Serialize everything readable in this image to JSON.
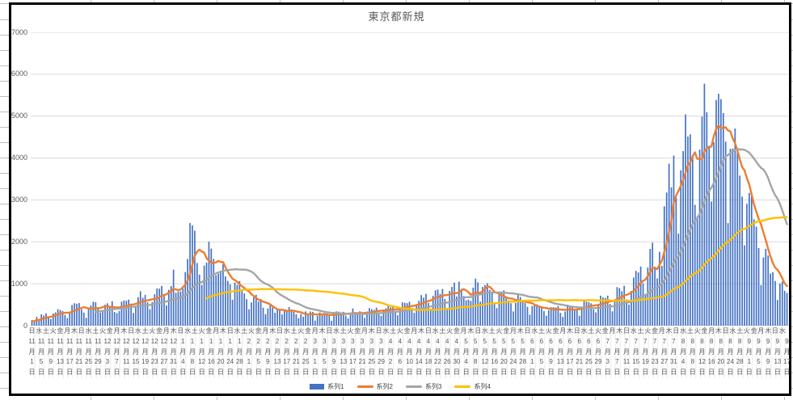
{
  "chart_data": {
    "type": "combo",
    "title": "東京都新規",
    "ylabel": "",
    "xlabel": "",
    "ylim": [
      0,
      7000
    ],
    "yticks": [
      0,
      1000,
      2000,
      3000,
      4000,
      5000,
      6000,
      7000
    ],
    "grid": "horizontal",
    "legend_position": "bottom",
    "x_start_label": "11月1日",
    "x_end_label": "9月17日",
    "x_tick_interval_days": 4,
    "weekday_row_interval_days": 3,
    "weekday_cycle": [
      "日",
      "水",
      "土",
      "火",
      "金",
      "月",
      "木"
    ],
    "x_tick_labels": [
      {
        "m": 11,
        "d": 1
      },
      {
        "m": 11,
        "d": 5
      },
      {
        "m": 11,
        "d": 9
      },
      {
        "m": 11,
        "d": 13
      },
      {
        "m": 11,
        "d": 17
      },
      {
        "m": 11,
        "d": 21
      },
      {
        "m": 11,
        "d": 25
      },
      {
        "m": 11,
        "d": 29
      },
      {
        "m": 12,
        "d": 3
      },
      {
        "m": 12,
        "d": 7
      },
      {
        "m": 12,
        "d": 11
      },
      {
        "m": 12,
        "d": 15
      },
      {
        "m": 12,
        "d": 19
      },
      {
        "m": 12,
        "d": 23
      },
      {
        "m": 12,
        "d": 27
      },
      {
        "m": 12,
        "d": 31
      },
      {
        "m": 1,
        "d": 4
      },
      {
        "m": 1,
        "d": 8
      },
      {
        "m": 1,
        "d": 12
      },
      {
        "m": 1,
        "d": 16
      },
      {
        "m": 1,
        "d": 20
      },
      {
        "m": 1,
        "d": 24
      },
      {
        "m": 1,
        "d": 28
      },
      {
        "m": 2,
        "d": 1
      },
      {
        "m": 2,
        "d": 5
      },
      {
        "m": 2,
        "d": 9
      },
      {
        "m": 2,
        "d": 13
      },
      {
        "m": 2,
        "d": 17
      },
      {
        "m": 2,
        "d": 21
      },
      {
        "m": 2,
        "d": 25
      },
      {
        "m": 3,
        "d": 1
      },
      {
        "m": 3,
        "d": 5
      },
      {
        "m": 3,
        "d": 9
      },
      {
        "m": 3,
        "d": 13
      },
      {
        "m": 3,
        "d": 17
      },
      {
        "m": 3,
        "d": 21
      },
      {
        "m": 3,
        "d": 25
      },
      {
        "m": 3,
        "d": 29
      },
      {
        "m": 4,
        "d": 2
      },
      {
        "m": 4,
        "d": 6
      },
      {
        "m": 4,
        "d": 10
      },
      {
        "m": 4,
        "d": 14
      },
      {
        "m": 4,
        "d": 18
      },
      {
        "m": 4,
        "d": 22
      },
      {
        "m": 4,
        "d": 26
      },
      {
        "m": 4,
        "d": 30
      },
      {
        "m": 5,
        "d": 4
      },
      {
        "m": 5,
        "d": 8
      },
      {
        "m": 5,
        "d": 12
      },
      {
        "m": 5,
        "d": 16
      },
      {
        "m": 5,
        "d": 20
      },
      {
        "m": 5,
        "d": 24
      },
      {
        "m": 5,
        "d": 28
      },
      {
        "m": 6,
        "d": 1
      },
      {
        "m": 6,
        "d": 5
      },
      {
        "m": 6,
        "d": 9
      },
      {
        "m": 6,
        "d": 13
      },
      {
        "m": 6,
        "d": 17
      },
      {
        "m": 6,
        "d": 21
      },
      {
        "m": 6,
        "d": 25
      },
      {
        "m": 6,
        "d": 29
      },
      {
        "m": 7,
        "d": 3
      },
      {
        "m": 7,
        "d": 7
      },
      {
        "m": 7,
        "d": 11
      },
      {
        "m": 7,
        "d": 15
      },
      {
        "m": 7,
        "d": 19
      },
      {
        "m": 7,
        "d": 23
      },
      {
        "m": 7,
        "d": 27
      },
      {
        "m": 7,
        "d": 31
      },
      {
        "m": 8,
        "d": 4
      },
      {
        "m": 8,
        "d": 8
      },
      {
        "m": 8,
        "d": 12
      },
      {
        "m": 8,
        "d": 16
      },
      {
        "m": 8,
        "d": 20
      },
      {
        "m": 8,
        "d": 24
      },
      {
        "m": 8,
        "d": 28
      },
      {
        "m": 9,
        "d": 1
      },
      {
        "m": 9,
        "d": 5
      },
      {
        "m": 9,
        "d": 9
      },
      {
        "m": 9,
        "d": 13
      },
      {
        "m": 9,
        "d": 17
      }
    ],
    "series": [
      {
        "name": "系列1",
        "type": "bar",
        "color": "#4472C4",
        "values": [
          116,
          87,
          209,
          122,
          269,
          242,
          294,
          189,
          157,
          293,
          317,
          393,
          374,
          352,
          255,
          180,
          298,
          493,
          534,
          522,
          539,
          391,
          314,
          186,
          401,
          481,
          570,
          561,
          418,
          311,
          372,
          500,
          533,
          449,
          584,
          327,
          299,
          352,
          572,
          602,
          595,
          621,
          480,
          305,
          460,
          678,
          822,
          664,
          736,
          556,
          392,
          563,
          748,
          888,
          884,
          949,
          708,
          481,
          856,
          944,
          1337,
          783,
          814,
          816,
          884,
          1278,
          1591,
          2447,
          2392,
          2268,
          1494,
          1219,
          970,
          1433,
          1502,
          2001,
          1839,
          1592,
          1204,
          1240,
          1274,
          1471,
          1175,
          1070,
          986,
          618,
          1026,
          973,
          1064,
          868,
          769,
          633,
          393,
          556,
          676,
          734,
          577,
          639,
          429,
          276,
          412,
          491,
          434,
          307,
          369,
          371,
          266,
          350,
          378,
          445,
          353,
          327,
          272,
          178,
          275,
          213,
          340,
          270,
          337,
          329,
          121,
          232,
          316,
          279,
          301,
          293,
          237,
          116,
          290,
          340,
          335,
          304,
          330,
          239,
          175,
          300,
          409,
          323,
          303,
          342,
          256,
          187,
          337,
          420,
          394,
          376,
          430,
          313,
          234,
          364,
          414,
          475,
          440,
          446,
          355,
          249,
          399,
          555,
          545,
          537,
          570,
          421,
          306,
          510,
          591,
          729,
          667,
          759,
          543,
          405,
          711,
          843,
          861,
          759,
          876,
          635,
          425,
          828,
          925,
          1027,
          698,
          1050,
          879,
          708,
          609,
          621,
          591,
          907,
          1121,
          1032,
          573,
          925,
          969,
          1010,
          854,
          772,
          542,
          419,
          732,
          766,
          843,
          649,
          602,
          535,
          340,
          542,
          743,
          684,
          614,
          539,
          448,
          260,
          471,
          487,
          508,
          472,
          436,
          351,
          235,
          369,
          440,
          439,
          435,
          467,
          304,
          209,
          337,
          501,
          452,
          453,
          388,
          376,
          236,
          435,
          619,
          570,
          562,
          534,
          386,
          317,
          476,
          714,
          673,
          660,
          716,
          518,
          342,
          593,
          920,
          896,
          822,
          950,
          614,
          502,
          830,
          1149,
          1308,
          1271,
          1410,
          1008,
          727,
          1387,
          1832,
          1979,
          1359,
          1128,
          1763,
          1429,
          2848,
          3177,
          3865,
          3300,
          4058,
          3058,
          2195,
          3709,
          4166,
          5042,
          4515,
          4566,
          4066,
          2884,
          2612,
          4200,
          4989,
          5773,
          5094,
          4295,
          2962,
          4377,
          5386,
          5534,
          5405,
          5074,
          4392,
          2447,
          4220,
          4228,
          4704,
          4227,
          3581,
          3081,
          1915,
          2909,
          3168,
          3099,
          2539,
          2362,
          1853,
          968,
          1629,
          1834,
          1675,
          1242,
          1273,
          1067,
          611,
          1004,
          1052,
          831,
          782
        ]
      },
      {
        "name": "系列2",
        "type": "line",
        "color": "#ED7D31",
        "derived": "moving_average_of_series1",
        "window": 7,
        "min_periods": 1
      },
      {
        "name": "系列3",
        "type": "line",
        "color": "#A5A5A5",
        "derived": "moving_average_of_series1",
        "window": 28,
        "min_periods": 28
      },
      {
        "name": "系列4",
        "type": "line",
        "color": "#FFC000",
        "derived": "moving_average_of_series1",
        "window": 75,
        "min_periods": 75
      }
    ],
    "layout": {
      "gridline_color": "#D9D9D9",
      "axis_line_color": "#BFBFBF",
      "axis_text_color": "#595959",
      "title_color": "#595959",
      "chart_border_color": "#000000",
      "sheet_gridline_color": "#BFBFBF"
    }
  }
}
